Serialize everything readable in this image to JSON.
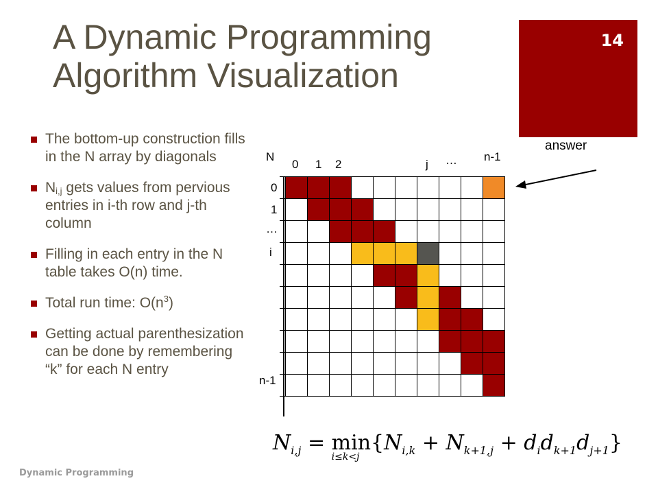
{
  "slide": {
    "title_line1": "A Dynamic Programming",
    "title_line2": "Algorithm Visualization",
    "page_number": "14",
    "footer": "Dynamic Programming"
  },
  "bullets": [
    {
      "text": "The bottom-up construction fills in the N array by diagonals"
    },
    {
      "pre": "N",
      "sub": "i,j",
      "post": " gets values from pervious entries in i-th row and j-th column"
    },
    {
      "text": "Filling in each entry in the N table takes O(n) time."
    },
    {
      "pre": "Total run time: O(n",
      "sup": "3",
      "post": ")"
    },
    {
      "text": "Getting actual parenthesization can be done by remembering “k” for each N entry"
    }
  ],
  "diagram": {
    "table_label": "N",
    "col_labels": [
      "0",
      "1",
      "2",
      "j",
      "…",
      "n-1"
    ],
    "row_labels": [
      "0",
      "1",
      "…",
      "i",
      "n-1"
    ],
    "answer_label": "answer",
    "colors": {
      "filled": "#990000",
      "dependency": "#f9bc1b",
      "current": "#555550",
      "answer": "#f08a28"
    },
    "filled_cells": [
      [
        0,
        0
      ],
      [
        0,
        1
      ],
      [
        0,
        2
      ],
      [
        1,
        1
      ],
      [
        1,
        2
      ],
      [
        1,
        3
      ],
      [
        2,
        2
      ],
      [
        2,
        3
      ],
      [
        2,
        4
      ],
      [
        4,
        4
      ],
      [
        4,
        5
      ],
      [
        5,
        5
      ],
      [
        5,
        7
      ],
      [
        6,
        7
      ],
      [
        6,
        8
      ],
      [
        7,
        7
      ],
      [
        7,
        8
      ],
      [
        7,
        9
      ],
      [
        8,
        8
      ],
      [
        8,
        9
      ],
      [
        9,
        9
      ]
    ],
    "dependency_cells": [
      [
        3,
        3
      ],
      [
        3,
        4
      ],
      [
        3,
        5
      ],
      [
        4,
        6
      ],
      [
        5,
        6
      ],
      [
        6,
        6
      ]
    ],
    "current_cell": [
      3,
      6
    ],
    "answer_cell": [
      0,
      9
    ]
  },
  "formula": {
    "lhs": "N",
    "lhs_sub": "i,j",
    "min": "min",
    "range": "i≤k<j",
    "t1": "N",
    "t1_sub": "i,k",
    "t2": "N",
    "t2_sub": "k+1,j",
    "t3a": "d",
    "t3a_sub": "i",
    "t3b": "d",
    "t3b_sub": "k+1",
    "t3c": "d",
    "t3c_sub": "j+1"
  }
}
